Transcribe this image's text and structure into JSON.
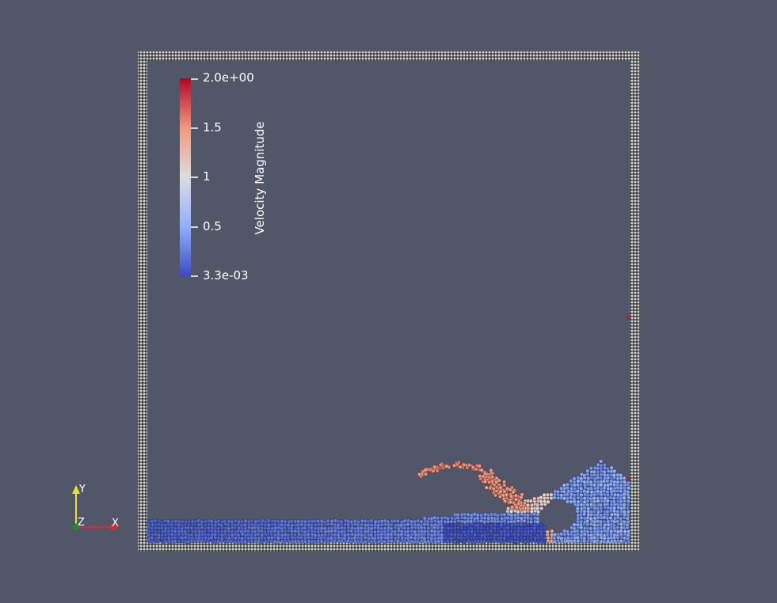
{
  "colorbar": {
    "title": "Velocity Magnitude",
    "range": [
      0.0033,
      2.0
    ],
    "colormap": "cool-to-warm",
    "colors": {
      "low": "#3b4cc0",
      "mid": "#dddddd",
      "high": "#b40426"
    },
    "tick_labels": [
      "2.0e+00",
      "1.5",
      "1",
      "0.5",
      "3.3e-03"
    ]
  },
  "axes": {
    "x_label": "X",
    "y_label": "Y",
    "z_label": "Z",
    "x_color": "#d92b2b",
    "y_color": "#e6e62e",
    "z_color": "#1a8a2a"
  },
  "scene": {
    "background": "#525669",
    "boundary_particle_color": "#cccccc",
    "description_icon": "dam-break-particle-render"
  }
}
